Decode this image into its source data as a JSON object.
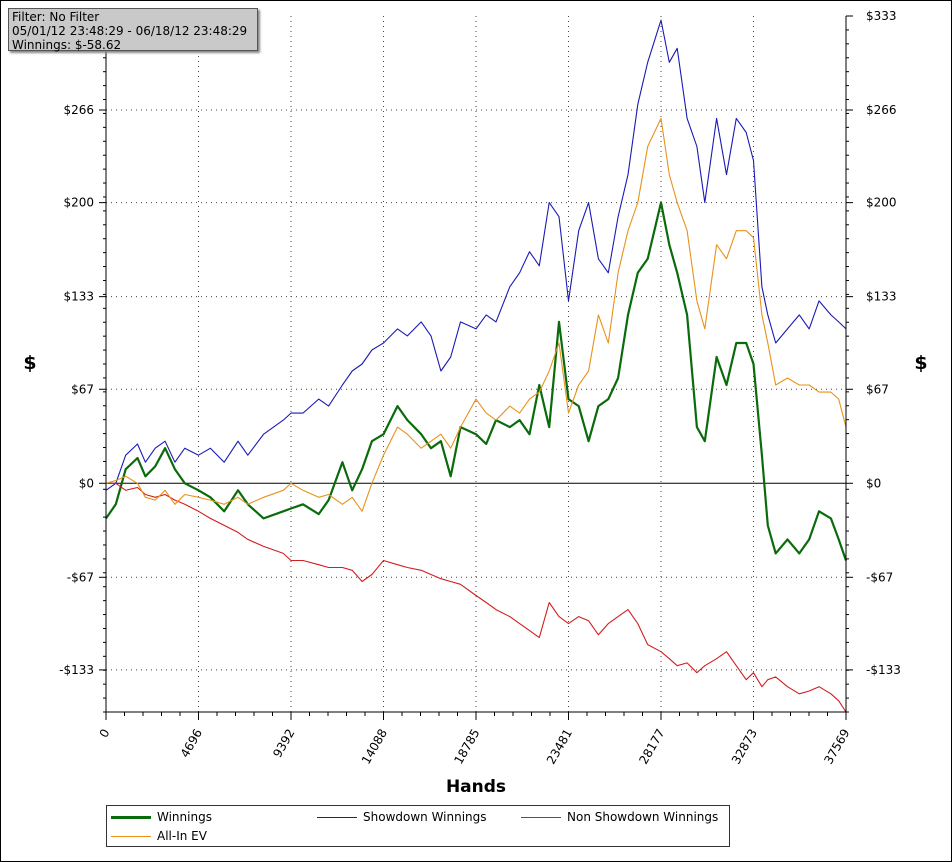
{
  "info_box": {
    "filter": "Filter: No Filter",
    "date_range": "05/01/12 23:48:29 - 06/18/12 23:48:29",
    "winnings": "Winnings: $-58.62"
  },
  "chart_data": {
    "type": "line",
    "title": "",
    "xlabel": "Hands",
    "ylabel_left": "$",
    "ylabel_right": "$",
    "xlim": [
      0,
      37569
    ],
    "ylim": [
      -163,
      333
    ],
    "x_ticks": [
      0,
      4696,
      9392,
      14088,
      18785,
      23481,
      28177,
      32873,
      37569
    ],
    "y_ticks": [
      {
        "value": 333,
        "label": "$333"
      },
      {
        "value": 266,
        "label": "$266"
      },
      {
        "value": 200,
        "label": "$200"
      },
      {
        "value": 133,
        "label": "$133"
      },
      {
        "value": 67,
        "label": "$67"
      },
      {
        "value": 0,
        "label": "$0"
      },
      {
        "value": -67,
        "label": "-$67"
      },
      {
        "value": -133,
        "label": "-$133"
      }
    ],
    "grid": true,
    "legend_placement": "bottom",
    "series": [
      {
        "name": "Winnings",
        "color": "#0a6b0a",
        "x": [
          0,
          500,
          1000,
          1600,
          2000,
          2500,
          3000,
          3500,
          4000,
          4696,
          5300,
          6000,
          6700,
          7200,
          8000,
          9000,
          9392,
          10000,
          10800,
          11300,
          12000,
          12500,
          13000,
          13500,
          14088,
          14800,
          15300,
          16000,
          16500,
          17000,
          17500,
          18000,
          18785,
          19300,
          19800,
          20500,
          21000,
          21500,
          22000,
          22500,
          23000,
          23481,
          24000,
          24500,
          25000,
          25500,
          26000,
          26500,
          27000,
          27500,
          28177,
          28600,
          29000,
          29500,
          30000,
          30400,
          31000,
          31500,
          32000,
          32500,
          32873,
          33300,
          33600,
          34000,
          34600,
          35200,
          35700,
          36200,
          36800,
          37200,
          37569
        ],
        "y": [
          -25,
          -15,
          10,
          18,
          5,
          12,
          25,
          10,
          0,
          -5,
          -10,
          -20,
          -5,
          -15,
          -25,
          -20,
          -18,
          -15,
          -22,
          -12,
          15,
          -5,
          10,
          30,
          35,
          55,
          45,
          35,
          25,
          30,
          5,
          40,
          35,
          28,
          45,
          40,
          45,
          35,
          70,
          40,
          115,
          60,
          55,
          30,
          55,
          60,
          75,
          120,
          150,
          160,
          200,
          170,
          150,
          120,
          40,
          30,
          90,
          70,
          100,
          100,
          85,
          20,
          -30,
          -50,
          -40,
          -50,
          -40,
          -20,
          -25,
          -40,
          -55
        ]
      },
      {
        "name": "Showdown Winnings",
        "color": "#1a1ab4",
        "x": [
          0,
          500,
          1000,
          1600,
          2000,
          2500,
          3000,
          3500,
          4000,
          4696,
          5300,
          6000,
          6700,
          7200,
          8000,
          9000,
          9392,
          10000,
          10800,
          11300,
          12000,
          12500,
          13000,
          13500,
          14088,
          14800,
          15300,
          16000,
          16500,
          17000,
          17500,
          18000,
          18785,
          19300,
          19800,
          20500,
          21000,
          21500,
          22000,
          22500,
          23000,
          23481,
          24000,
          24500,
          25000,
          25500,
          26000,
          26500,
          27000,
          27500,
          28177,
          28600,
          29000,
          29500,
          30000,
          30400,
          31000,
          31500,
          32000,
          32500,
          32873,
          33300,
          33600,
          34000,
          34600,
          35200,
          35700,
          36200,
          36800,
          37200,
          37569
        ],
        "y": [
          -5,
          0,
          20,
          28,
          15,
          25,
          30,
          15,
          25,
          20,
          25,
          15,
          30,
          20,
          35,
          45,
          50,
          50,
          60,
          55,
          70,
          80,
          85,
          95,
          100,
          110,
          105,
          115,
          105,
          80,
          90,
          115,
          110,
          120,
          115,
          140,
          150,
          165,
          155,
          200,
          190,
          130,
          180,
          200,
          160,
          150,
          190,
          220,
          270,
          300,
          330,
          300,
          310,
          260,
          240,
          200,
          260,
          220,
          260,
          250,
          230,
          140,
          120,
          100,
          110,
          120,
          110,
          130,
          120,
          115,
          110
        ]
      },
      {
        "name": "Non Showdown Winnings",
        "color": "#d21e1e",
        "x": [
          0,
          500,
          1000,
          1600,
          2000,
          2500,
          3000,
          3500,
          4000,
          4696,
          5300,
          6000,
          6700,
          7200,
          8000,
          9000,
          9392,
          10000,
          10800,
          11300,
          12000,
          12500,
          13000,
          13500,
          14088,
          14800,
          15300,
          16000,
          16500,
          17000,
          17500,
          18000,
          18785,
          19300,
          19800,
          20500,
          21000,
          21500,
          22000,
          22500,
          23000,
          23481,
          24000,
          24500,
          25000,
          25500,
          26000,
          26500,
          27000,
          27500,
          28177,
          28600,
          29000,
          29500,
          30000,
          30400,
          31000,
          31500,
          32000,
          32500,
          32873,
          33300,
          33600,
          34000,
          34600,
          35200,
          35700,
          36200,
          36800,
          37200,
          37569
        ],
        "y": [
          0,
          0,
          -5,
          -3,
          -8,
          -10,
          -8,
          -12,
          -15,
          -20,
          -25,
          -30,
          -35,
          -40,
          -45,
          -50,
          -55,
          -55,
          -58,
          -60,
          -60,
          -62,
          -70,
          -65,
          -55,
          -58,
          -60,
          -62,
          -65,
          -68,
          -70,
          -72,
          -80,
          -85,
          -90,
          -95,
          -100,
          -105,
          -110,
          -85,
          -95,
          -100,
          -95,
          -98,
          -108,
          -100,
          -95,
          -90,
          -100,
          -115,
          -120,
          -125,
          -130,
          -128,
          -135,
          -130,
          -125,
          -120,
          -130,
          -140,
          -135,
          -145,
          -140,
          -138,
          -145,
          -150,
          -148,
          -145,
          -150,
          -155,
          -163
        ]
      },
      {
        "name": "All-In EV",
        "color": "#e8921a",
        "x": [
          0,
          500,
          1000,
          1600,
          2000,
          2500,
          3000,
          3500,
          4000,
          4696,
          5300,
          6000,
          6700,
          7200,
          8000,
          9000,
          9392,
          10000,
          10800,
          11300,
          12000,
          12500,
          13000,
          13500,
          14088,
          14800,
          15300,
          16000,
          16500,
          17000,
          17500,
          18000,
          18785,
          19300,
          19800,
          20500,
          21000,
          21500,
          22000,
          22500,
          23000,
          23481,
          24000,
          24500,
          25000,
          25500,
          26000,
          26500,
          27000,
          27500,
          28177,
          28600,
          29000,
          29500,
          30000,
          30400,
          31000,
          31500,
          32000,
          32500,
          32873,
          33300,
          33600,
          34000,
          34600,
          35200,
          35700,
          36200,
          36800,
          37200,
          37569
        ],
        "y": [
          0,
          2,
          5,
          0,
          -10,
          -12,
          -5,
          -15,
          -8,
          -10,
          -12,
          -15,
          -10,
          -15,
          -10,
          -5,
          0,
          -5,
          -10,
          -8,
          -15,
          -10,
          -20,
          0,
          20,
          40,
          35,
          25,
          30,
          35,
          25,
          40,
          60,
          50,
          45,
          55,
          50,
          60,
          65,
          80,
          100,
          50,
          70,
          80,
          120,
          100,
          150,
          180,
          200,
          240,
          260,
          220,
          200,
          180,
          130,
          110,
          170,
          160,
          180,
          180,
          175,
          120,
          100,
          70,
          75,
          70,
          70,
          65,
          65,
          60,
          40
        ]
      }
    ]
  },
  "legend": {
    "items": [
      "Winnings",
      "Showdown Winnings",
      "Non Showdown Winnings",
      "All-In EV"
    ]
  }
}
